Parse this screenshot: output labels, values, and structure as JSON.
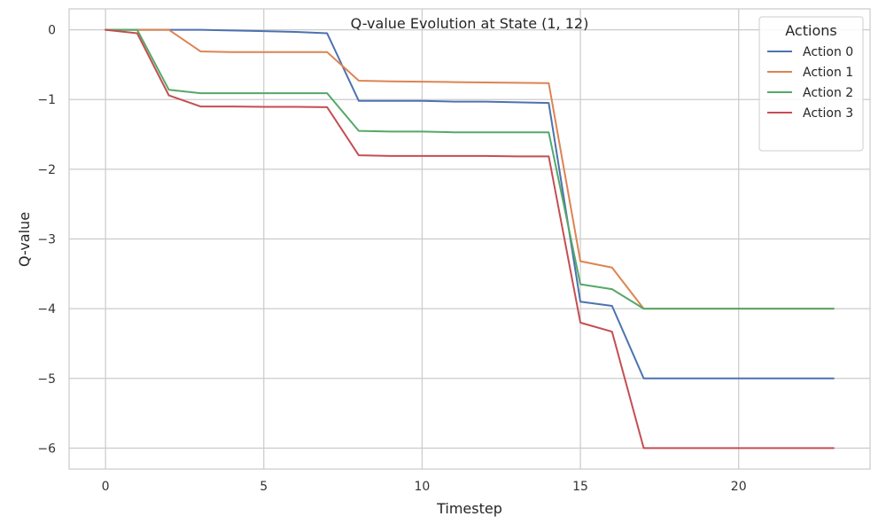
{
  "colors": {
    "background": "#ffffff",
    "grid": "#cccccc",
    "frame": "#cccccc"
  },
  "chart_data": {
    "type": "line",
    "title": "Q-value Evolution at State (1, 12)",
    "xlabel": "Timestep",
    "ylabel": "Q-value",
    "xlim": [
      -1.15,
      24.15
    ],
    "ylim": [
      -6.3,
      0.3
    ],
    "xticks": [
      0,
      5,
      10,
      15,
      20
    ],
    "yticks": [
      0,
      -1,
      -2,
      -3,
      -4,
      -5,
      -6
    ],
    "xtick_labels": [
      "0",
      "5",
      "10",
      "15",
      "20"
    ],
    "ytick_labels": [
      "0",
      "−1",
      "−2",
      "−3",
      "−4",
      "−5",
      "−6"
    ],
    "grid": true,
    "legend": {
      "title": "Actions",
      "placement": "top-right"
    },
    "x": [
      0,
      1,
      2,
      3,
      4,
      5,
      6,
      7,
      8,
      9,
      10,
      11,
      12,
      13,
      14,
      15,
      16,
      17,
      18,
      19,
      20,
      21,
      22,
      23
    ],
    "series": [
      {
        "name": "Action 0",
        "color": "#4c72b0",
        "values": [
          0,
          0,
          0,
          0,
          -0.01,
          -0.02,
          -0.03,
          -0.05,
          -1.02,
          -1.02,
          -1.02,
          -1.03,
          -1.03,
          -1.04,
          -1.05,
          -3.9,
          -3.96,
          -5,
          -5,
          -5,
          -5,
          -5,
          -5,
          -5
        ]
      },
      {
        "name": "Action 1",
        "color": "#dd8452",
        "values": [
          0,
          0,
          0,
          -0.31,
          -0.32,
          -0.32,
          -0.32,
          -0.32,
          -0.73,
          -0.74,
          -0.745,
          -0.75,
          -0.755,
          -0.76,
          -0.765,
          -3.32,
          -3.41,
          -4,
          -4,
          -4,
          -4,
          -4,
          -4,
          -4
        ]
      },
      {
        "name": "Action 2",
        "color": "#55a868",
        "values": [
          0,
          0,
          -0.86,
          -0.91,
          -0.91,
          -0.91,
          -0.91,
          -0.91,
          -1.45,
          -1.46,
          -1.46,
          -1.47,
          -1.47,
          -1.47,
          -1.47,
          -3.65,
          -3.72,
          -4,
          -4,
          -4,
          -4,
          -4,
          -4,
          -4
        ]
      },
      {
        "name": "Action 3",
        "color": "#c44e52",
        "values": [
          0,
          -0.05,
          -0.94,
          -1.1,
          -1.1,
          -1.105,
          -1.105,
          -1.11,
          -1.8,
          -1.81,
          -1.81,
          -1.81,
          -1.81,
          -1.815,
          -1.815,
          -4.2,
          -4.33,
          -6,
          -6,
          -6,
          -6,
          -6,
          -6,
          -6
        ]
      }
    ]
  }
}
